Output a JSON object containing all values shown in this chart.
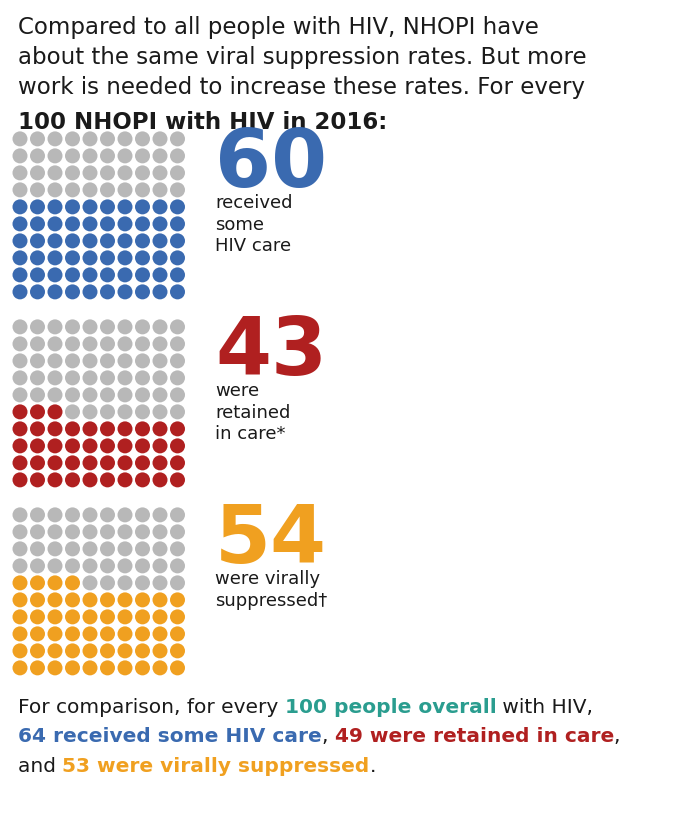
{
  "title_normal": "Compared to all people with HIV, NHOPI have\nabout the same viral suppression rates. But more\nwork is needed to increase these rates. For every",
  "title_bold": "100 NHOPI with HIV in 2016",
  "title_colon": ":",
  "sections": [
    {
      "value": 60,
      "color": "#3a6ab0",
      "label_lines": [
        "received",
        "some",
        "HIV care"
      ],
      "num_fontsize": 58
    },
    {
      "value": 43,
      "color": "#b02020",
      "label_lines": [
        "were",
        "retained",
        "in care*"
      ],
      "num_fontsize": 58
    },
    {
      "value": 54,
      "color": "#f0a020",
      "label_lines": [
        "were virally",
        "suppressed†"
      ],
      "num_fontsize": 58
    }
  ],
  "gray_color": "#b8b8b8",
  "dot_cols": 10,
  "dot_rows": 10,
  "comparison_line1_parts": [
    {
      "text": "For comparison, for every ",
      "color": "#1a1a1a",
      "bold": false
    },
    {
      "text": "100 people overall",
      "color": "#2a9d8f",
      "bold": true
    },
    {
      "text": " with HIV,",
      "color": "#1a1a1a",
      "bold": false
    }
  ],
  "comparison_line2_parts": [
    {
      "text": "64 received some HIV care",
      "color": "#3a6ab0",
      "bold": true
    },
    {
      "text": ", ",
      "color": "#1a1a1a",
      "bold": false
    },
    {
      "text": "49 were retained in care",
      "color": "#b02020",
      "bold": true
    },
    {
      "text": ",",
      "color": "#1a1a1a",
      "bold": false
    }
  ],
  "comparison_line3_parts": [
    {
      "text": "and ",
      "color": "#1a1a1a",
      "bold": false
    },
    {
      "text": "53 were virally suppressed",
      "color": "#f0a020",
      "bold": true
    },
    {
      "text": ".",
      "color": "#1a1a1a",
      "bold": false
    }
  ],
  "bg_color": "#ffffff"
}
